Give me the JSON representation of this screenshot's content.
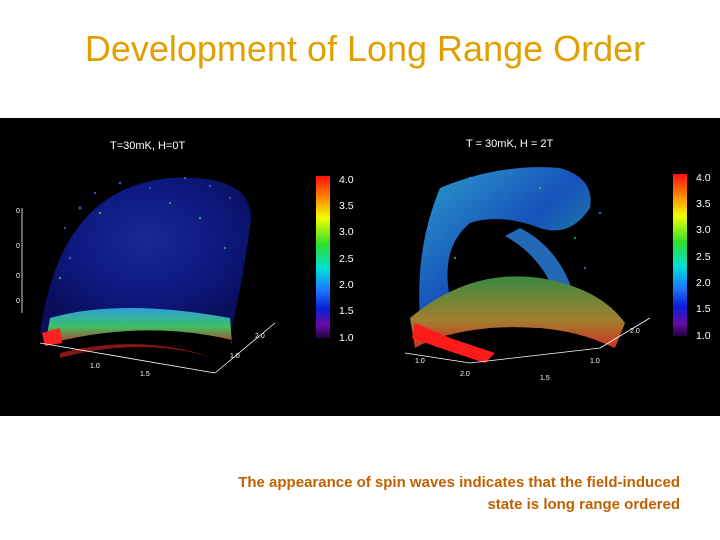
{
  "slide": {
    "title": "Development of Long Range Order",
    "caption": {
      "line1": "The appearance of spin waves indicates that the field-induced",
      "line2": "state is long range ordered"
    }
  },
  "figure": {
    "left_panel": {
      "label": "T=30mK, H=0T",
      "colorbar_ticks": [
        "4.0",
        "3.5",
        "3.0",
        "2.5",
        "2.0",
        "1.5",
        "1.0"
      ]
    },
    "right_panel": {
      "label": "T = 30mK, H = 2T",
      "colorbar_ticks": [
        "4.0",
        "3.5",
        "3.0",
        "2.5",
        "2.0",
        "1.5",
        "1.0"
      ]
    },
    "colors": {
      "title": "#e0a000",
      "caption": "#c06000",
      "background": "#000000"
    }
  }
}
